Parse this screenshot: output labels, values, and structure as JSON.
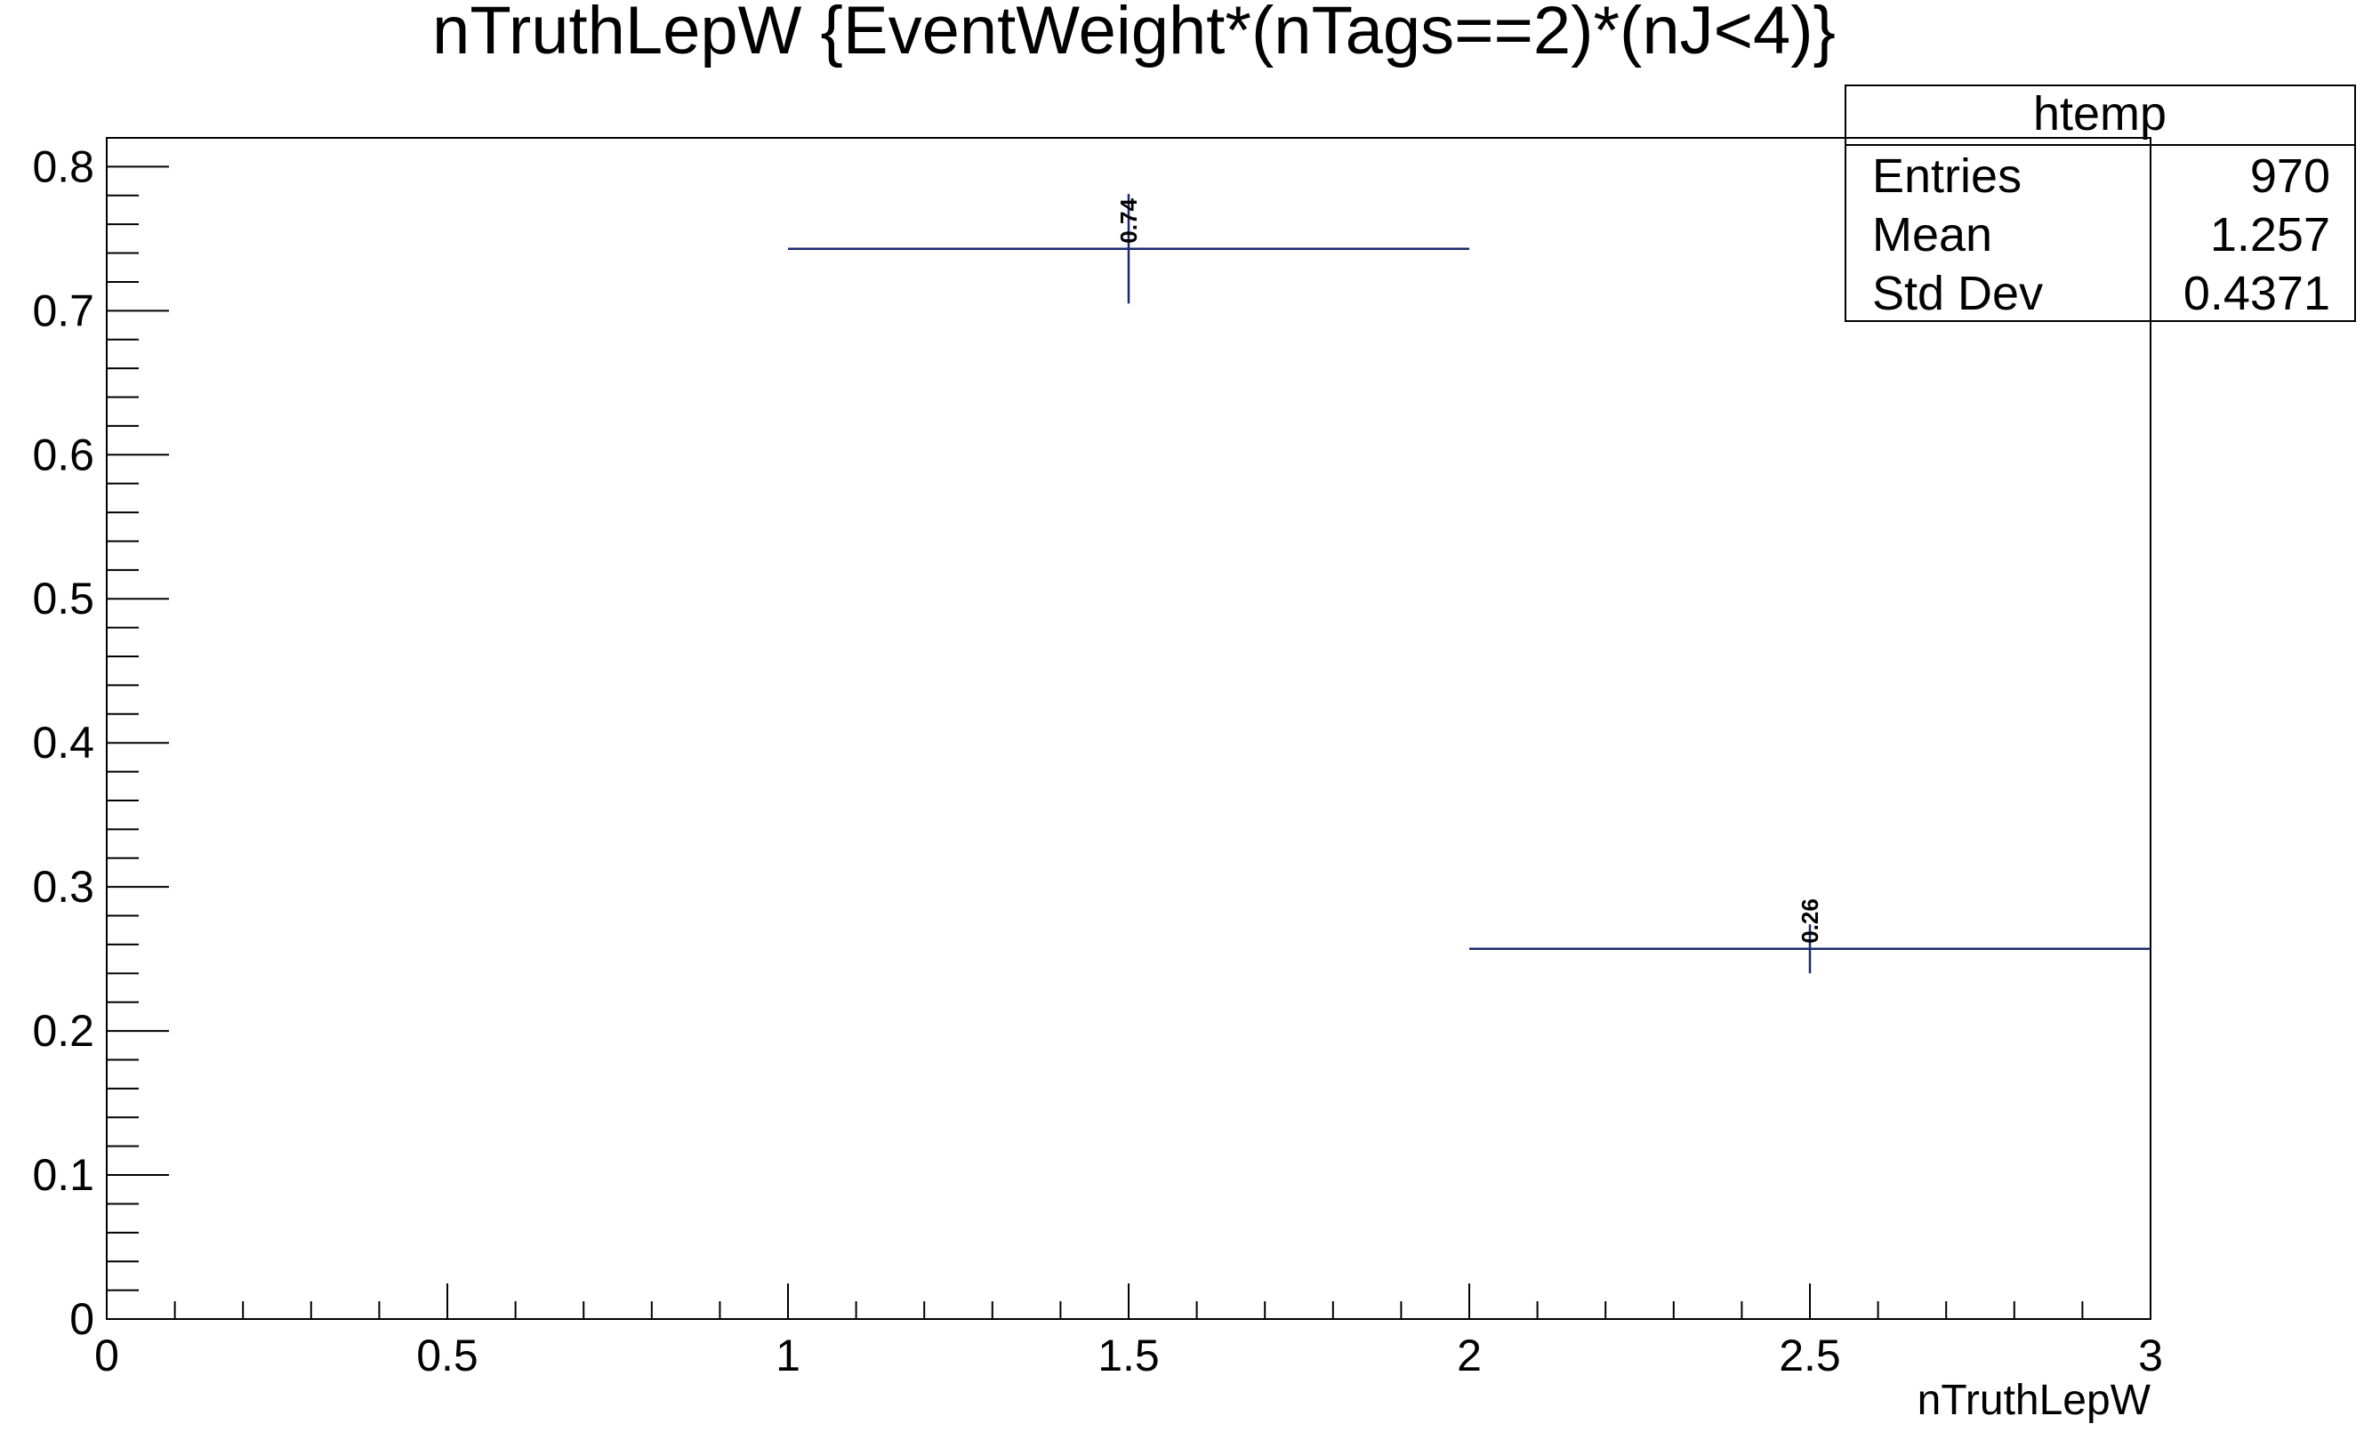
{
  "chart_data": {
    "type": "histogram",
    "title": "nTruthLepW {EventWeight*(nTags==2)*(nJ<4)}",
    "xlabel": "nTruthLepW",
    "ylabel": "",
    "xlim": [
      0,
      3
    ],
    "ylim": [
      0,
      0.82
    ],
    "x_ticks": [
      0,
      0.5,
      1,
      1.5,
      2,
      2.5,
      3
    ],
    "x_tick_labels": [
      "0",
      "0.5",
      "1",
      "1.5",
      "2",
      "2.5",
      "3"
    ],
    "y_ticks": [
      0,
      0.1,
      0.2,
      0.3,
      0.4,
      0.5,
      0.6,
      0.7,
      0.8
    ],
    "y_tick_labels": [
      "0",
      "0.1",
      "0.2",
      "0.3",
      "0.4",
      "0.5",
      "0.6",
      "0.7",
      "0.8"
    ],
    "bins": [
      {
        "low": 1,
        "high": 2,
        "center": 1.5,
        "value": 0.743,
        "err": 0.038,
        "label": "0.74"
      },
      {
        "low": 2,
        "high": 3,
        "center": 2.5,
        "value": 0.257,
        "err": 0.017,
        "label": "0.26"
      }
    ],
    "series_color": "#1a2a6c",
    "grid": false,
    "stats_box": {
      "title": "htemp",
      "placement": "top-right",
      "rows": [
        {
          "label": "Entries",
          "value": "970"
        },
        {
          "label": "Mean",
          "value": "1.257"
        },
        {
          "label": "Std Dev",
          "value": "0.4371"
        }
      ]
    }
  }
}
